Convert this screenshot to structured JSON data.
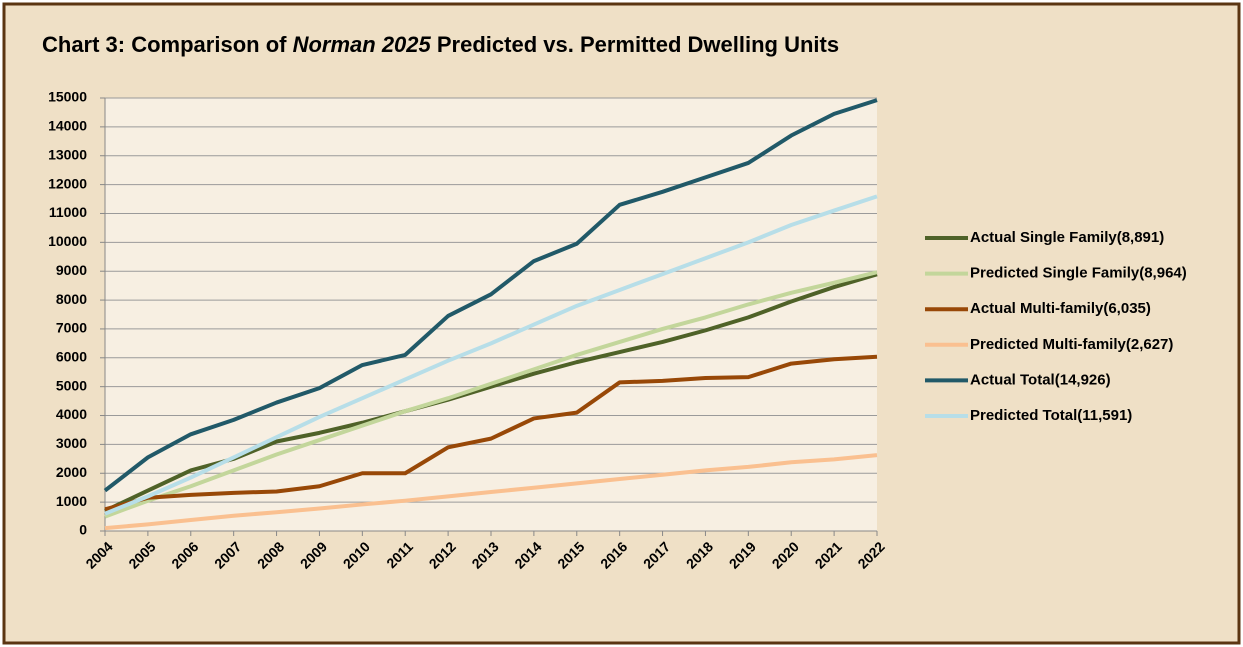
{
  "chart_data": {
    "type": "line",
    "title": [
      "Chart 3: Comparison of ",
      "Norman 2025",
      " Predicted vs. Permitted Dwelling Units"
    ],
    "categories": [
      "2004",
      "2005",
      "2006",
      "2007",
      "2008",
      "2009",
      "2010",
      "2011",
      "2012",
      "2013",
      "2014",
      "2015",
      "2016",
      "2017",
      "2018",
      "2019",
      "2020",
      "2021",
      "2022"
    ],
    "series": [
      {
        "name": "Actual Single Family(8,891)",
        "color": "#4f6228",
        "values": [
          700,
          1400,
          2100,
          2500,
          3100,
          3400,
          3750,
          4150,
          4550,
          5000,
          5450,
          5850,
          6200,
          6550,
          6950,
          7400,
          7950,
          8450,
          8891
        ]
      },
      {
        "name": "Predicted Single Family(8,964)",
        "color": "#c3d69b",
        "values": [
          500,
          1050,
          1550,
          2100,
          2650,
          3150,
          3650,
          4150,
          4600,
          5100,
          5600,
          6100,
          6550,
          7000,
          7400,
          7850,
          8250,
          8600,
          8964
        ]
      },
      {
        "name": "Actual Multi-family(6,035)",
        "color": "#984807",
        "values": [
          750,
          1150,
          1250,
          1320,
          1370,
          1550,
          2000,
          2000,
          2900,
          3200,
          3900,
          4100,
          5150,
          5200,
          5300,
          5330,
          5800,
          5950,
          6035
        ]
      },
      {
        "name": "Predicted Multi-family(2,627)",
        "color": "#fac090",
        "values": [
          100,
          230,
          380,
          530,
          650,
          780,
          920,
          1050,
          1200,
          1350,
          1500,
          1650,
          1800,
          1950,
          2100,
          2220,
          2380,
          2480,
          2627
        ]
      },
      {
        "name": "Actual Total(14,926)",
        "color": "#215968",
        "values": [
          1400,
          2550,
          3350,
          3850,
          4450,
          4950,
          5750,
          6100,
          7450,
          8200,
          9350,
          9950,
          11300,
          11750,
          12250,
          12750,
          13700,
          14450,
          14926
        ]
      },
      {
        "name": "Predicted Total(11,591)",
        "color": "#b7dee8",
        "values": [
          600,
          1200,
          1850,
          2550,
          3250,
          3950,
          4600,
          5250,
          5900,
          6500,
          7150,
          7800,
          8350,
          8900,
          9450,
          10000,
          10600,
          11100,
          11591
        ]
      }
    ],
    "ylim": [
      0,
      15000
    ],
    "yticks": [
      0,
      1000,
      2000,
      3000,
      4000,
      5000,
      6000,
      7000,
      8000,
      9000,
      10000,
      11000,
      12000,
      13000,
      14000,
      15000
    ],
    "grid": true,
    "legend": "right"
  }
}
